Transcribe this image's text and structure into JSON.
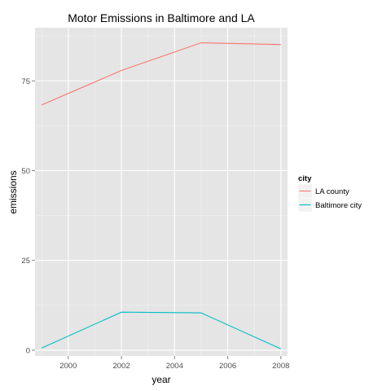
{
  "chart_data": {
    "type": "line",
    "title": "Motor Emissions in Baltimore and LA",
    "xlabel": "year",
    "ylabel": "emissions",
    "xlim": [
      1998.75,
      2008.25
    ],
    "ylim": [
      -1.6,
      89.8
    ],
    "x_ticks": [
      2000,
      2002,
      2004,
      2006,
      2008
    ],
    "y_ticks": [
      0,
      25,
      50,
      75
    ],
    "grid": true,
    "legend_title": "city",
    "legend_position": "right",
    "series": [
      {
        "name": "LA county",
        "color": "#F8766D",
        "x": [
          1999,
          2002,
          2005,
          2008
        ],
        "y": [
          68.3,
          77.9,
          85.6,
          85.1
        ]
      },
      {
        "name": "Baltimore city",
        "color": "#00BFC4",
        "x": [
          1999,
          2002,
          2005,
          2008
        ],
        "y": [
          0.6,
          10.6,
          10.4,
          0.4
        ]
      }
    ]
  }
}
